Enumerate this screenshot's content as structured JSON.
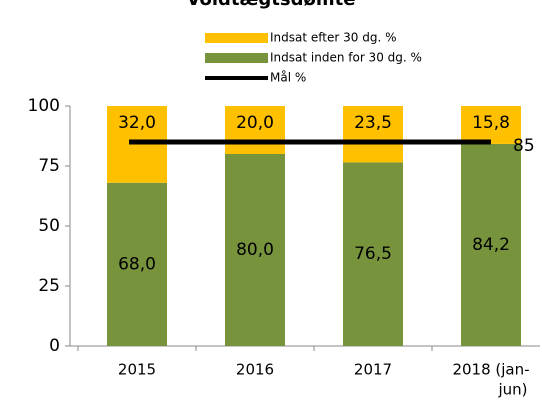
{
  "chart_data": {
    "type": "bar",
    "stacked": true,
    "title": "Voldtægtsdømte",
    "categories": [
      [
        "2015"
      ],
      [
        "2016"
      ],
      [
        "2017"
      ],
      [
        "2018 (jan-",
        "jun)"
      ]
    ],
    "series": [
      {
        "name": "Indsat efter 30 dg. %",
        "color": "#ffc000",
        "values": [
          32.0,
          20.0,
          23.5,
          15.8
        ],
        "value_labels": [
          "32,0",
          "20,0",
          "23,5",
          "15,8"
        ]
      },
      {
        "name": "Indsat inden for 30 dg. %",
        "color": "#77933c",
        "values": [
          68.0,
          80.0,
          76.5,
          84.2
        ],
        "value_labels": [
          "68,0",
          "80,0",
          "76,5",
          "84,2"
        ]
      },
      {
        "name": "Mål %",
        "type": "line",
        "color": "#000000",
        "values": [
          85,
          85,
          85,
          85
        ]
      }
    ],
    "ylim": [
      0,
      100
    ],
    "yticks": [
      0,
      25,
      50,
      75,
      100
    ]
  }
}
